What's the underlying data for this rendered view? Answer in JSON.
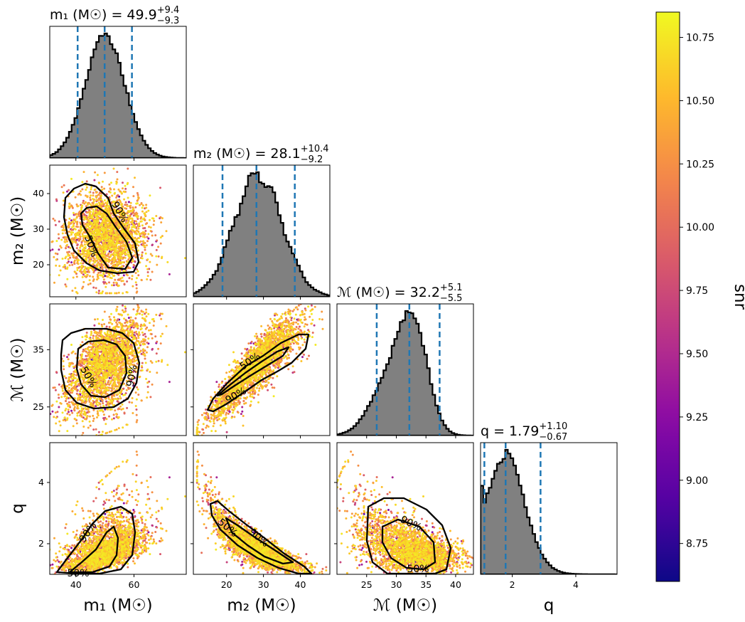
{
  "chart_data": {
    "type": "corner",
    "parameters": [
      {
        "key": "m1",
        "axis_label": "m₁ (M☉)",
        "title": "m₁ (M☉) = 49.9",
        "title_sup": "+9.4",
        "title_sub": "−9.3",
        "median": 49.9,
        "lo": 40.6,
        "hi": 59.3,
        "range": [
          31,
          78
        ],
        "ticks": [
          40,
          60
        ]
      },
      {
        "key": "m2",
        "axis_label": "m₂ (M☉)",
        "title": "m₂ (M☉) = 28.1",
        "title_sup": "+10.4",
        "title_sub": "−9.2",
        "median": 28.1,
        "lo": 18.9,
        "hi": 38.5,
        "range": [
          11,
          48
        ],
        "ticks": [
          20,
          30,
          40
        ]
      },
      {
        "key": "mc",
        "axis_label": "ℳ (M☉)",
        "title": "ℳ (M☉) = 32.2",
        "title_sup": "+5.1",
        "title_sub": "−5.5",
        "median": 32.2,
        "lo": 26.7,
        "hi": 37.3,
        "range": [
          20,
          43
        ],
        "ticks": [
          25,
          30,
          35,
          40
        ]
      },
      {
        "key": "q",
        "axis_label": "q",
        "title": "q = 1.79",
        "title_sup": "+1.10",
        "title_sub": "−0.67",
        "median": 1.79,
        "lo": 1.12,
        "hi": 2.89,
        "range": [
          1.0,
          5.3
        ],
        "ticks": [
          2,
          4
        ]
      }
    ],
    "y_ticks": {
      "m2": [
        20,
        30,
        40
      ],
      "mc": [
        25,
        35
      ],
      "q": [
        2,
        4
      ]
    },
    "contour_levels": [
      "50%",
      "90%"
    ],
    "colorbar": {
      "label": "snr",
      "min": 8.6,
      "max": 10.85,
      "ticks": [
        "8.75",
        "9.00",
        "9.25",
        "9.50",
        "9.75",
        "10.00",
        "10.25",
        "10.50",
        "10.75"
      ]
    },
    "colormap": "plasma",
    "hist_fill": "#808080",
    "quantile_line_color": "#1f77b4"
  }
}
